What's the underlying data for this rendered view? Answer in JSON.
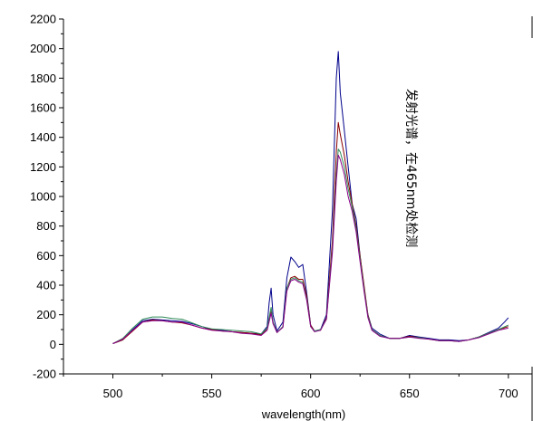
{
  "chart_data": {
    "type": "line",
    "title": "",
    "xlabel": "wavelength(nm)",
    "ylabel": "",
    "xlim": [
      475,
      712
    ],
    "ylim": [
      -200,
      2200
    ],
    "xticks": [
      "500",
      "550",
      "600",
      "650",
      "700"
    ],
    "yticks": [
      "-200",
      "0",
      "200",
      "400",
      "600",
      "800",
      "1000",
      "1200",
      "1400",
      "1600",
      "1800",
      "2000",
      "2200"
    ],
    "annotation": "发射光谱，在465nm处检测",
    "grid": false,
    "series": [
      {
        "color": "#00008b",
        "points": [
          [
            500,
            5
          ],
          [
            505,
            30
          ],
          [
            510,
            100
          ],
          [
            515,
            160
          ],
          [
            520,
            170
          ],
          [
            525,
            165
          ],
          [
            530,
            160
          ],
          [
            535,
            155
          ],
          [
            540,
            140
          ],
          [
            545,
            120
          ],
          [
            550,
            100
          ],
          [
            555,
            95
          ],
          [
            560,
            85
          ],
          [
            565,
            80
          ],
          [
            570,
            75
          ],
          [
            575,
            70
          ],
          [
            578,
            120
          ],
          [
            579,
            280
          ],
          [
            580,
            380
          ],
          [
            581,
            200
          ],
          [
            583,
            90
          ],
          [
            586,
            150
          ],
          [
            588,
            450
          ],
          [
            590,
            590
          ],
          [
            592,
            560
          ],
          [
            594,
            520
          ],
          [
            596,
            540
          ],
          [
            598,
            350
          ],
          [
            600,
            130
          ],
          [
            602,
            90
          ],
          [
            605,
            100
          ],
          [
            608,
            200
          ],
          [
            611,
            900
          ],
          [
            613,
            1800
          ],
          [
            614,
            1980
          ],
          [
            615,
            1700
          ],
          [
            617,
            1450
          ],
          [
            619,
            1200
          ],
          [
            621,
            950
          ],
          [
            623,
            850
          ],
          [
            625,
            600
          ],
          [
            627,
            380
          ],
          [
            629,
            200
          ],
          [
            631,
            110
          ],
          [
            635,
            70
          ],
          [
            640,
            40
          ],
          [
            645,
            40
          ],
          [
            650,
            60
          ],
          [
            655,
            50
          ],
          [
            660,
            40
          ],
          [
            665,
            30
          ],
          [
            670,
            30
          ],
          [
            675,
            25
          ],
          [
            680,
            30
          ],
          [
            685,
            50
          ],
          [
            690,
            80
          ],
          [
            695,
            110
          ],
          [
            698,
            150
          ],
          [
            700,
            180
          ]
        ]
      },
      {
        "color": "#8b0000",
        "points": [
          [
            500,
            5
          ],
          [
            505,
            30
          ],
          [
            510,
            90
          ],
          [
            515,
            150
          ],
          [
            520,
            165
          ],
          [
            525,
            160
          ],
          [
            530,
            150
          ],
          [
            535,
            145
          ],
          [
            540,
            130
          ],
          [
            545,
            110
          ],
          [
            550,
            100
          ],
          [
            555,
            90
          ],
          [
            560,
            85
          ],
          [
            565,
            80
          ],
          [
            570,
            75
          ],
          [
            575,
            65
          ],
          [
            578,
            100
          ],
          [
            580,
            220
          ],
          [
            581,
            150
          ],
          [
            583,
            80
          ],
          [
            586,
            120
          ],
          [
            588,
            380
          ],
          [
            590,
            450
          ],
          [
            592,
            460
          ],
          [
            594,
            440
          ],
          [
            596,
            440
          ],
          [
            598,
            330
          ],
          [
            600,
            130
          ],
          [
            602,
            90
          ],
          [
            605,
            95
          ],
          [
            608,
            180
          ],
          [
            611,
            700
          ],
          [
            613,
            1300
          ],
          [
            614,
            1500
          ],
          [
            615,
            1420
          ],
          [
            617,
            1280
          ],
          [
            619,
            1100
          ],
          [
            621,
            950
          ],
          [
            623,
            800
          ],
          [
            625,
            600
          ],
          [
            627,
            400
          ],
          [
            629,
            200
          ],
          [
            631,
            100
          ],
          [
            635,
            60
          ],
          [
            640,
            40
          ],
          [
            645,
            40
          ],
          [
            650,
            55
          ],
          [
            655,
            45
          ],
          [
            660,
            35
          ],
          [
            665,
            25
          ],
          [
            670,
            25
          ],
          [
            675,
            20
          ],
          [
            680,
            30
          ],
          [
            685,
            50
          ],
          [
            690,
            75
          ],
          [
            695,
            100
          ],
          [
            700,
            120
          ]
        ]
      },
      {
        "color": "#2e8b57",
        "points": [
          [
            500,
            5
          ],
          [
            505,
            40
          ],
          [
            510,
            110
          ],
          [
            515,
            170
          ],
          [
            520,
            185
          ],
          [
            525,
            185
          ],
          [
            530,
            175
          ],
          [
            535,
            170
          ],
          [
            540,
            145
          ],
          [
            545,
            120
          ],
          [
            550,
            105
          ],
          [
            555,
            100
          ],
          [
            560,
            95
          ],
          [
            565,
            90
          ],
          [
            570,
            85
          ],
          [
            575,
            70
          ],
          [
            578,
            110
          ],
          [
            580,
            250
          ],
          [
            581,
            150
          ],
          [
            583,
            80
          ],
          [
            586,
            120
          ],
          [
            588,
            380
          ],
          [
            590,
            440
          ],
          [
            592,
            450
          ],
          [
            594,
            430
          ],
          [
            596,
            420
          ],
          [
            598,
            310
          ],
          [
            600,
            120
          ],
          [
            602,
            90
          ],
          [
            605,
            100
          ],
          [
            608,
            170
          ],
          [
            611,
            650
          ],
          [
            613,
            1150
          ],
          [
            614,
            1320
          ],
          [
            615,
            1300
          ],
          [
            617,
            1200
          ],
          [
            619,
            1050
          ],
          [
            621,
            930
          ],
          [
            623,
            780
          ],
          [
            625,
            580
          ],
          [
            627,
            380
          ],
          [
            629,
            190
          ],
          [
            631,
            100
          ],
          [
            635,
            60
          ],
          [
            640,
            40
          ],
          [
            645,
            40
          ],
          [
            650,
            50
          ],
          [
            655,
            45
          ],
          [
            660,
            35
          ],
          [
            665,
            25
          ],
          [
            670,
            25
          ],
          [
            675,
            20
          ],
          [
            680,
            30
          ],
          [
            685,
            50
          ],
          [
            690,
            75
          ],
          [
            695,
            100
          ],
          [
            700,
            130
          ]
        ]
      },
      {
        "color": "#8b008b",
        "points": [
          [
            500,
            5
          ],
          [
            505,
            35
          ],
          [
            510,
            95
          ],
          [
            515,
            150
          ],
          [
            520,
            160
          ],
          [
            525,
            160
          ],
          [
            530,
            150
          ],
          [
            535,
            150
          ],
          [
            540,
            130
          ],
          [
            545,
            110
          ],
          [
            550,
            95
          ],
          [
            555,
            90
          ],
          [
            560,
            85
          ],
          [
            565,
            75
          ],
          [
            570,
            70
          ],
          [
            575,
            60
          ],
          [
            578,
            95
          ],
          [
            580,
            210
          ],
          [
            581,
            140
          ],
          [
            583,
            80
          ],
          [
            586,
            115
          ],
          [
            588,
            360
          ],
          [
            590,
            430
          ],
          [
            592,
            440
          ],
          [
            594,
            420
          ],
          [
            596,
            410
          ],
          [
            598,
            300
          ],
          [
            600,
            120
          ],
          [
            602,
            85
          ],
          [
            605,
            95
          ],
          [
            608,
            170
          ],
          [
            611,
            620
          ],
          [
            613,
            1100
          ],
          [
            614,
            1280
          ],
          [
            615,
            1250
          ],
          [
            617,
            1150
          ],
          [
            619,
            1000
          ],
          [
            621,
            900
          ],
          [
            623,
            760
          ],
          [
            625,
            560
          ],
          [
            627,
            360
          ],
          [
            629,
            180
          ],
          [
            631,
            95
          ],
          [
            635,
            55
          ],
          [
            640,
            40
          ],
          [
            645,
            40
          ],
          [
            650,
            50
          ],
          [
            655,
            40
          ],
          [
            660,
            35
          ],
          [
            665,
            25
          ],
          [
            670,
            25
          ],
          [
            675,
            20
          ],
          [
            680,
            30
          ],
          [
            685,
            45
          ],
          [
            690,
            70
          ],
          [
            695,
            95
          ],
          [
            700,
            110
          ]
        ]
      }
    ]
  }
}
